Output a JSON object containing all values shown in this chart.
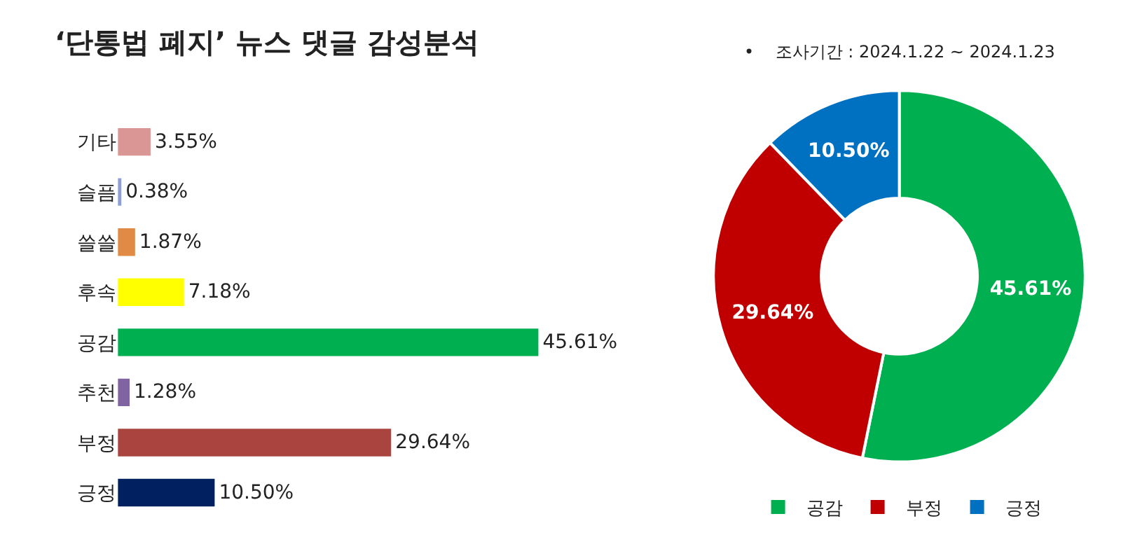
{
  "chart_data": [
    {
      "type": "bar",
      "title": "‘단통법 폐지’ 뉴스 댓글 감성분석",
      "orientation": "horizontal",
      "categories": [
        "기타",
        "슬픔",
        "쓸쓸",
        "후속",
        "공감",
        "추천",
        "부정",
        "긍정"
      ],
      "values": [
        3.55,
        0.38,
        1.87,
        7.18,
        45.61,
        1.28,
        29.64,
        10.5
      ],
      "value_labels": [
        "3.55%",
        "0.38%",
        "1.87%",
        "7.18%",
        "45.61%",
        "1.28%",
        "29.64%",
        "10.50%"
      ],
      "colors": [
        "#d99694",
        "#8e9fd6",
        "#e08a45",
        "#ffff00",
        "#00b050",
        "#8064a2",
        "#a9443f",
        "#002060"
      ],
      "tick_labels": "y"
    },
    {
      "type": "donut",
      "subtitle": "•    조사기간 : 2024.1.22 ~ 2024.1.23",
      "categories": [
        "공감",
        "부정",
        "긍정"
      ],
      "values": [
        45.61,
        29.64,
        10.5
      ],
      "value_labels": [
        "45.61%",
        "29.64%",
        "10.50%"
      ],
      "colors": [
        "#00b050",
        "#c00000",
        "#0070c0"
      ],
      "legend": "bottom"
    }
  ]
}
